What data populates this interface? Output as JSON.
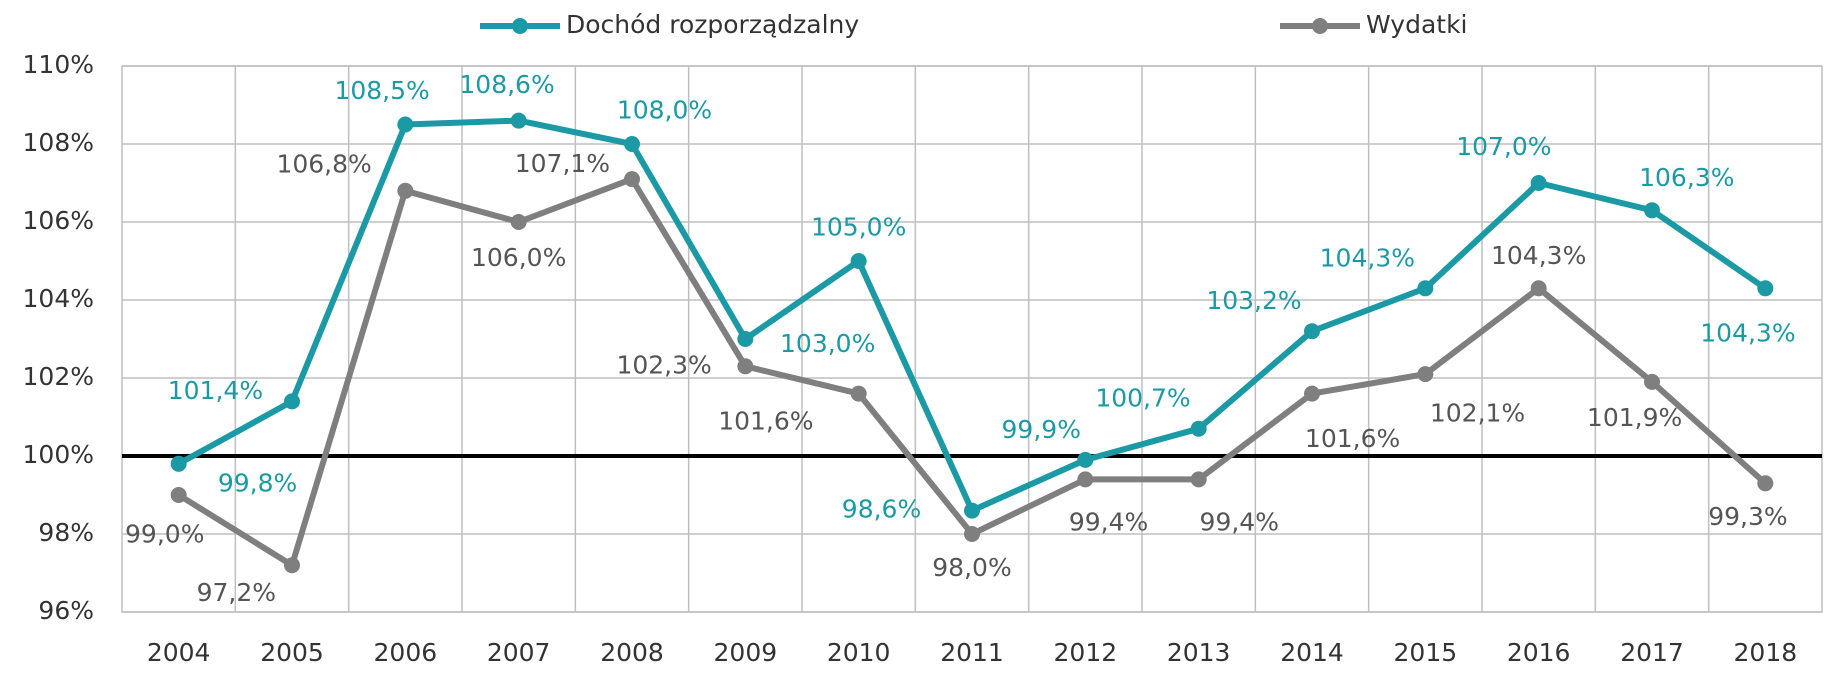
{
  "chart_data": {
    "type": "line",
    "categories": [
      "2004",
      "2005",
      "2006",
      "2007",
      "2008",
      "2009",
      "2010",
      "2011",
      "2012",
      "2013",
      "2014",
      "2015",
      "2016",
      "2017",
      "2018"
    ],
    "series": [
      {
        "name": "Dochód rozporządzalny",
        "color": "#1b9aa6",
        "values": [
          99.8,
          101.4,
          108.5,
          108.6,
          108.0,
          103.0,
          105.0,
          98.6,
          99.9,
          100.7,
          103.2,
          104.3,
          107.0,
          106.3,
          104.3
        ],
        "value_labels": [
          "99,8%",
          "101,4%",
          "108,5%",
          "108,6%",
          "108,0%",
          "103,0%",
          "105,0%",
          "98,6%",
          "99,9%",
          "100,7%",
          "103,2%",
          "104,3%",
          "107,0%",
          "106,3%",
          "104,3%"
        ]
      },
      {
        "name": "Wydatki",
        "color": "#7f7f7f",
        "values": [
          99.0,
          97.2,
          106.8,
          106.0,
          107.1,
          102.3,
          101.6,
          98.0,
          99.4,
          99.4,
          101.6,
          102.1,
          104.3,
          101.9,
          99.3
        ],
        "value_labels": [
          "99,0%",
          "97,2%",
          "106,8%",
          "106,0%",
          "107,1%",
          "102,3%",
          "101,6%",
          "98,0%",
          "99,4%",
          "99,4%",
          "101,6%",
          "102,1%",
          "104,3%",
          "101,9%",
          "99,3%"
        ]
      }
    ],
    "ylim": [
      96,
      110
    ],
    "yticks": [
      {
        "value": 96,
        "label": "96%"
      },
      {
        "value": 98,
        "label": "98%"
      },
      {
        "value": 100,
        "label": "100%"
      },
      {
        "value": 102,
        "label": "102%"
      },
      {
        "value": 104,
        "label": "104%"
      },
      {
        "value": 106,
        "label": "106%"
      },
      {
        "value": 108,
        "label": "108%"
      },
      {
        "value": 110,
        "label": "110%"
      }
    ],
    "reference_line": 100,
    "grid": true,
    "legend": "top"
  }
}
